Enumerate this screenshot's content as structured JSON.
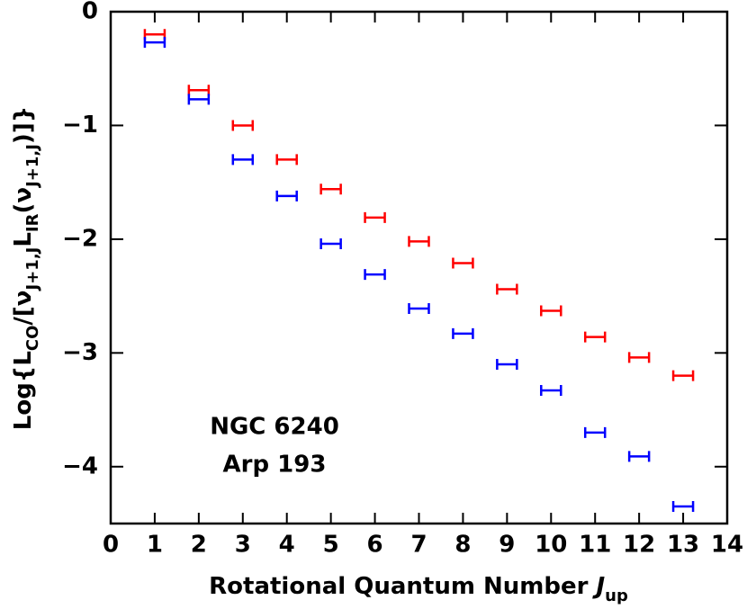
{
  "chart_data": {
    "type": "scatter",
    "x_label": [
      {
        "text": "Rotational Quantum Number "
      },
      {
        "italic": "J"
      },
      {
        "sub": "up"
      }
    ],
    "y_label": [
      {
        "text": "Log{L"
      },
      {
        "sub": "CO"
      },
      {
        "text": "/[ν"
      },
      {
        "sub": "J+1,J"
      },
      {
        "text": "L"
      },
      {
        "sub": "IR"
      },
      {
        "text": "(ν"
      },
      {
        "sub": "J+1,J"
      },
      {
        "text": ")]}"
      }
    ],
    "x": [
      1,
      2,
      3,
      4,
      5,
      6,
      7,
      8,
      9,
      10,
      11,
      12,
      13
    ],
    "series": [
      {
        "name": "NGC 6240",
        "color": "#ff0000",
        "values": [
          -0.2,
          -0.69,
          -1.0,
          -1.3,
          -1.56,
          -1.81,
          -2.02,
          -2.21,
          -2.44,
          -2.63,
          -2.86,
          -3.04,
          -3.2
        ]
      },
      {
        "name": "Arp 193",
        "color": "#0000ff",
        "values": [
          -0.27,
          -0.77,
          -1.3,
          -1.62,
          -2.04,
          -2.31,
          -2.61,
          -2.83,
          -3.1,
          -3.33,
          -3.7,
          -3.91,
          -4.35
        ]
      }
    ],
    "xlim": [
      0,
      14
    ],
    "ylim": [
      -4.5,
      0
    ],
    "xticks": [
      0,
      1,
      2,
      3,
      4,
      5,
      6,
      7,
      8,
      9,
      10,
      11,
      12,
      13,
      14
    ],
    "yticks": [
      0,
      {
        "value": -1,
        "label": "−1"
      },
      {
        "value": -2,
        "label": "−2"
      },
      {
        "value": -3,
        "label": "−3"
      },
      {
        "value": -4,
        "label": "−4"
      }
    ],
    "legend": "lower left"
  }
}
